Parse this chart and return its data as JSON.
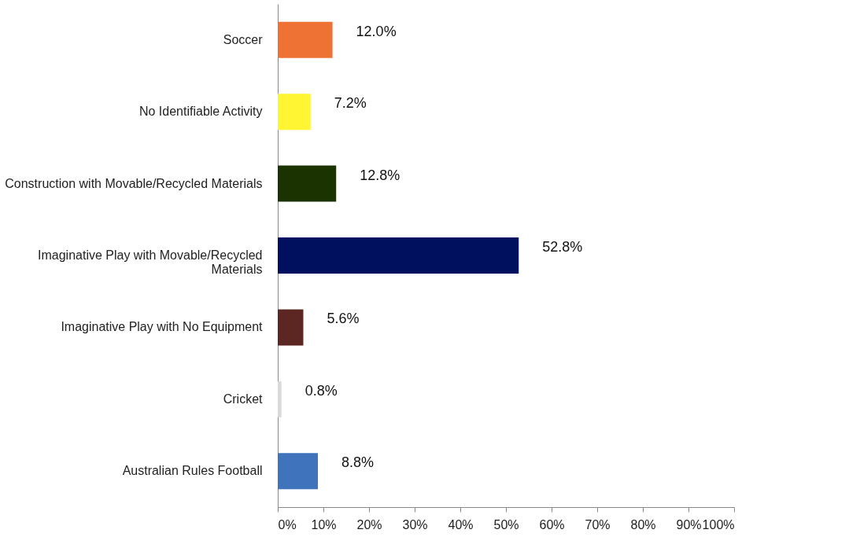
{
  "chart_data": {
    "type": "bar",
    "orientation": "horizontal",
    "categories": [
      "Soccer",
      "No Identifiable Activity",
      "Construction with Movable/Recycled Materials",
      "Imaginative Play with Movable/Recycled Materials",
      "Imaginative Play with No Equipment",
      "Cricket",
      "Australian Rules Football"
    ],
    "values": [
      12.0,
      7.2,
      12.8,
      52.8,
      5.6,
      0.8,
      8.8
    ],
    "colors": [
      "#ed7233",
      "#fff533",
      "#1b3300",
      "#00105e",
      "#5c2623",
      "#d9d9d9",
      "#3f74bc"
    ],
    "value_labels": [
      "12.0%",
      "7.2%",
      "12.8%",
      "52.8%",
      "5.6%",
      "0.8%",
      "8.8%"
    ],
    "xlim": [
      0,
      100
    ],
    "xticks": [
      {
        "value": 0,
        "label": "0%"
      },
      {
        "value": 10,
        "label": "10%"
      },
      {
        "value": 20,
        "label": "20%"
      },
      {
        "value": 30,
        "label": "30%"
      },
      {
        "value": 40,
        "label": "40%"
      },
      {
        "value": 50,
        "label": "50%"
      },
      {
        "value": 60,
        "label": "60%"
      },
      {
        "value": 70,
        "label": "70%"
      },
      {
        "value": 80,
        "label": "80%"
      },
      {
        "value": 90,
        "label": "90%"
      },
      {
        "value": 100,
        "label": "100%"
      }
    ],
    "grid": false
  }
}
